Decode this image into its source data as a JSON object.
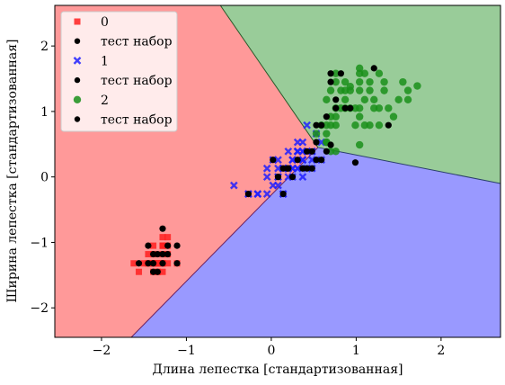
{
  "chart_data": {
    "type": "scatter",
    "subtype": "decision-regions",
    "title": "",
    "xlabel": "Длина лепестка [стандартизованная]",
    "ylabel": "Ширина лепестка [стандартизованная]",
    "xlim": [
      -2.55,
      2.7
    ],
    "ylim": [
      -2.45,
      2.62
    ],
    "xticks": [
      -2,
      -1,
      0,
      1,
      2
    ],
    "yticks": [
      -2,
      -1,
      0,
      1,
      2
    ],
    "grid": false,
    "legend_position": "top-left",
    "region_colors": {
      "0": "#ff9999",
      "1": "#9999ff",
      "2": "#99cc99"
    },
    "region_boundaries": [
      {
        "between": [
          "0",
          "2"
        ],
        "points": [
          [
            -0.6,
            2.62
          ],
          [
            0.55,
            0.45
          ]
        ]
      },
      {
        "between": [
          "0",
          "1"
        ],
        "points": [
          [
            0.55,
            0.45
          ],
          [
            -1.65,
            -2.45
          ]
        ]
      },
      {
        "between": [
          "1",
          "2"
        ],
        "points": [
          [
            0.55,
            0.45
          ],
          [
            2.7,
            -0.1
          ]
        ]
      }
    ],
    "series": [
      {
        "name": "0",
        "marker": "square",
        "color": "#ff2020",
        "points": [
          [
            -1.39,
            -1.32
          ],
          [
            -1.39,
            -1.32
          ],
          [
            -1.45,
            -1.32
          ],
          [
            -1.34,
            -1.32
          ],
          [
            -1.39,
            -1.32
          ],
          [
            -1.22,
            -1.05
          ],
          [
            -1.45,
            -1.18
          ],
          [
            -1.34,
            -1.32
          ],
          [
            -1.39,
            -1.45
          ],
          [
            -1.34,
            -1.45
          ],
          [
            -1.34,
            -1.32
          ],
          [
            -1.28,
            -1.32
          ],
          [
            -1.34,
            -1.45
          ],
          [
            -1.56,
            -1.45
          ],
          [
            -1.5,
            -1.32
          ],
          [
            -1.28,
            -1.05
          ],
          [
            -1.39,
            -1.05
          ],
          [
            -1.39,
            -1.18
          ],
          [
            -1.22,
            -1.18
          ],
          [
            -1.28,
            -1.18
          ],
          [
            -1.22,
            -1.32
          ],
          [
            -1.28,
            -0.92
          ],
          [
            -1.62,
            -1.32
          ],
          [
            -1.22,
            -0.92
          ],
          [
            -1.11,
            -1.32
          ],
          [
            -1.28,
            -1.32
          ],
          [
            -1.28,
            -1.05
          ],
          [
            -1.34,
            -1.32
          ],
          [
            -1.39,
            -1.32
          ],
          [
            -1.28,
            -1.32
          ],
          [
            -1.28,
            -1.32
          ],
          [
            -1.28,
            -1.05
          ],
          [
            -1.28,
            -1.45
          ],
          [
            -1.34,
            -1.32
          ],
          [
            -1.45,
            -1.32
          ]
        ]
      },
      {
        "name": "тест набор",
        "marker": "dot",
        "color": "#000000",
        "points": [
          [
            -1.39,
            -1.32
          ],
          [
            -1.34,
            -1.18
          ],
          [
            -1.28,
            -1.32
          ],
          [
            -1.45,
            -1.32
          ],
          [
            -1.22,
            -1.05
          ],
          [
            -1.56,
            -1.32
          ],
          [
            -1.34,
            -1.45
          ],
          [
            -1.11,
            -1.32
          ],
          [
            -1.28,
            -0.79
          ],
          [
            -1.39,
            -1.18
          ],
          [
            -1.22,
            -1.18
          ],
          [
            -1.11,
            -1.05
          ],
          [
            -1.45,
            -1.05
          ],
          [
            -1.28,
            -1.18
          ],
          [
            -1.39,
            -1.45
          ]
        ]
      },
      {
        "name": "1",
        "marker": "x",
        "color": "#2020ff",
        "points": [
          [
            0.37,
            0.26
          ],
          [
            0.31,
            0.39
          ],
          [
            0.42,
            0.39
          ],
          [
            0.14,
            0.13
          ],
          [
            0.37,
            0.39
          ],
          [
            0.31,
            0.13
          ],
          [
            0.37,
            0.53
          ],
          [
            -0.27,
            -0.26
          ],
          [
            0.31,
            0.13
          ],
          [
            0.08,
            0.26
          ],
          [
            -0.16,
            -0.26
          ],
          [
            0.2,
            0.39
          ],
          [
            0.14,
            -0.26
          ],
          [
            0.37,
            0.26
          ],
          [
            -0.05,
            0.13
          ],
          [
            0.25,
            0.26
          ],
          [
            0.31,
            0.39
          ],
          [
            0.14,
            -0.26
          ],
          [
            0.31,
            0.39
          ],
          [
            0.08,
            -0.13
          ],
          [
            0.42,
            0.79
          ],
          [
            0.14,
            0.13
          ],
          [
            0.48,
            0.39
          ],
          [
            0.37,
            0.0
          ],
          [
            0.2,
            0.13
          ],
          [
            0.25,
            0.26
          ],
          [
            0.48,
            0.26
          ],
          [
            0.53,
            0.66
          ],
          [
            0.31,
            0.39
          ],
          [
            -0.16,
            -0.26
          ],
          [
            0.02,
            -0.13
          ],
          [
            -0.05,
            -0.26
          ],
          [
            0.08,
            0.0
          ],
          [
            0.59,
            0.53
          ],
          [
            0.31,
            0.39
          ],
          [
            0.31,
            0.53
          ],
          [
            0.37,
            0.39
          ],
          [
            0.25,
            0.13
          ],
          [
            0.14,
            0.13
          ],
          [
            0.08,
            0.13
          ],
          [
            0.25,
            0.0
          ],
          [
            0.37,
            0.26
          ],
          [
            0.08,
            0.0
          ],
          [
            -0.27,
            -0.26
          ],
          [
            0.2,
            0.13
          ],
          [
            0.2,
            0.0
          ],
          [
            0.2,
            0.13
          ],
          [
            0.25,
            0.13
          ],
          [
            -0.44,
            -0.13
          ],
          [
            0.14,
            0.13
          ],
          [
            0.48,
            0.13
          ],
          [
            0.42,
            0.13
          ],
          [
            0.59,
            0.26
          ],
          [
            0.48,
            0.39
          ],
          [
            -0.05,
            0.0
          ],
          [
            0.02,
            0.26
          ],
          [
            0.37,
            0.39
          ]
        ]
      },
      {
        "name": "тест набор",
        "marker": "dot",
        "color": "#000000",
        "points": [
          [
            0.14,
            0.13
          ],
          [
            0.2,
            0.13
          ],
          [
            0.42,
            0.13
          ],
          [
            0.48,
            0.39
          ],
          [
            0.25,
            0.0
          ],
          [
            0.31,
            0.26
          ],
          [
            0.53,
            0.26
          ],
          [
            0.08,
            0.0
          ],
          [
            0.14,
            -0.26
          ],
          [
            0.59,
            0.26
          ],
          [
            -0.27,
            -0.26
          ],
          [
            0.37,
            0.13
          ],
          [
            0.48,
            0.13
          ],
          [
            0.02,
            0.26
          ],
          [
            0.42,
            0.39
          ],
          [
            0.53,
            0.53
          ],
          [
            0.65,
            0.39
          ],
          [
            0.08,
            0.0
          ],
          [
            0.19,
            0.13
          ]
        ]
      },
      {
        "name": "2",
        "marker": "circle",
        "color": "#1a8f1a",
        "points": [
          [
            0.76,
            1.58
          ],
          [
            0.76,
            1.45
          ],
          [
            0.65,
            1.18
          ],
          [
            0.7,
            1.32
          ],
          [
            0.76,
            1.05
          ],
          [
            0.87,
            1.32
          ],
          [
            1.04,
            1.45
          ],
          [
            0.87,
            1.05
          ],
          [
            0.93,
            1.32
          ],
          [
            1.21,
            1.18
          ],
          [
            0.76,
            0.79
          ],
          [
            1.1,
            1.58
          ],
          [
            0.82,
            1.05
          ],
          [
            0.7,
            0.92
          ],
          [
            0.87,
            1.18
          ],
          [
            1.33,
            1.45
          ],
          [
            1.27,
            0.79
          ],
          [
            0.99,
            1.05
          ],
          [
            1.44,
            0.92
          ],
          [
            0.76,
            0.92
          ],
          [
            0.99,
            0.79
          ],
          [
            0.65,
            0.79
          ],
          [
            1.1,
            1.18
          ],
          [
            1.04,
            1.32
          ],
          [
            0.82,
            1.32
          ],
          [
            1.16,
            1.45
          ],
          [
            1.21,
            1.05
          ],
          [
            1.33,
            1.32
          ],
          [
            1.38,
            1.05
          ],
          [
            0.76,
            0.39
          ],
          [
            0.65,
            0.66
          ],
          [
            0.53,
            0.66
          ],
          [
            0.59,
            0.79
          ],
          [
            0.65,
            0.53
          ],
          [
            0.7,
            0.79
          ],
          [
            1.04,
            1.05
          ],
          [
            1.5,
            1.18
          ],
          [
            1.61,
            1.32
          ],
          [
            1.55,
            1.45
          ],
          [
            1.72,
            1.39
          ],
          [
            1.61,
            1.18
          ],
          [
            1.04,
            1.58
          ],
          [
            0.93,
            1.38
          ],
          [
            1.27,
            1.58
          ],
          [
            0.87,
            1.45
          ],
          [
            1.1,
            0.79
          ],
          [
            1.04,
            0.92
          ],
          [
            1.16,
            0.79
          ],
          [
            0.7,
            0.39
          ],
          [
            0.65,
            0.53
          ],
          [
            1.04,
            0.49
          ],
          [
            0.93,
            1.05
          ],
          [
            1.16,
            1.32
          ],
          [
            1.04,
            1.66
          ],
          [
            1.27,
            1.05
          ]
        ]
      },
      {
        "name": "тест набор",
        "marker": "dot",
        "color": "#000000",
        "points": [
          [
            0.7,
            1.58
          ],
          [
            0.7,
            1.45
          ],
          [
            0.59,
            0.79
          ],
          [
            0.65,
            0.92
          ],
          [
            0.76,
            1.05
          ],
          [
            0.76,
            1.18
          ],
          [
            0.87,
            1.05
          ],
          [
            0.93,
            1.05
          ],
          [
            1.21,
            1.66
          ],
          [
            1.38,
            0.79
          ],
          [
            0.99,
            0.22
          ],
          [
            0.53,
            0.79
          ],
          [
            0.82,
            1.58
          ],
          [
            0.7,
            0.49
          ]
        ]
      }
    ]
  }
}
